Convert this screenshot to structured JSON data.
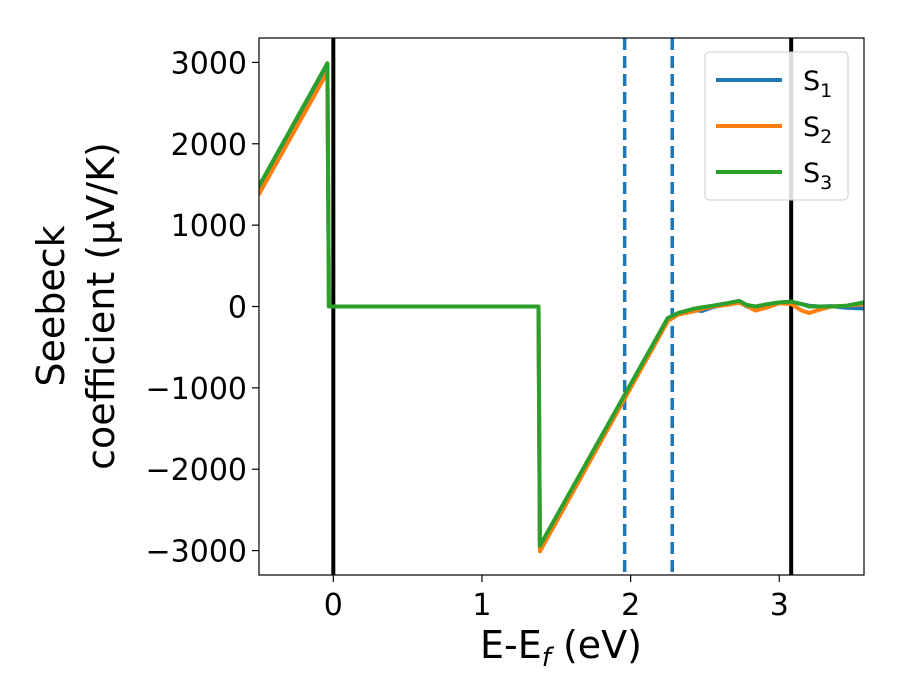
{
  "chart_data": {
    "type": "line",
    "xlabel": "E-E_f (eV)",
    "ylabel": "Seebeck coefficient (μV/K)",
    "ylabel_lines": [
      "Seebeck",
      "coefficient  (μV/K)"
    ],
    "xlim": [
      -0.5,
      3.57
    ],
    "ylim": [
      -3300,
      3300
    ],
    "x_ticks": [
      0,
      1,
      2,
      3
    ],
    "x_tick_labels": [
      "0",
      "1",
      "2",
      "3"
    ],
    "y_ticks": [
      3000,
      2000,
      1000,
      0,
      -1000,
      -2000,
      -3000
    ],
    "y_tick_labels": [
      "3000",
      "2000",
      "1000",
      "0",
      "−1000",
      "−2000",
      "−3000"
    ],
    "grid": false,
    "legend_position": "top-right",
    "vertical_lines": [
      {
        "x": 0.0,
        "style": "solid",
        "color": "#000000"
      },
      {
        "x": 1.96,
        "style": "dashed",
        "color": "#1f77b4"
      },
      {
        "x": 2.28,
        "style": "dashed",
        "color": "#1f77b4"
      },
      {
        "x": 3.08,
        "style": "solid",
        "color": "#000000"
      }
    ],
    "series": [
      {
        "name": "S_1",
        "legend_main": "S",
        "legend_sub": "1",
        "color": "#1f77b4",
        "x": [
          -0.5,
          -0.04,
          -0.03,
          1.38,
          1.39,
          2.25,
          2.32,
          2.42,
          2.48,
          2.55,
          2.65,
          2.73,
          2.78,
          2.84,
          2.92,
          3.0,
          3.08,
          3.15,
          3.2,
          3.27,
          3.35,
          3.45,
          3.57
        ],
        "y": [
          1450,
          2980,
          0,
          0,
          -2950,
          -160,
          -80,
          -40,
          -55,
          -10,
          30,
          60,
          0,
          -30,
          20,
          45,
          55,
          30,
          10,
          0,
          5,
          -15,
          -25
        ]
      },
      {
        "name": "S_2",
        "legend_main": "S",
        "legend_sub": "2",
        "color": "#ff7f0e",
        "x": [
          -0.5,
          -0.04,
          -0.03,
          1.38,
          1.39,
          2.25,
          2.32,
          2.42,
          2.48,
          2.55,
          2.65,
          2.73,
          2.78,
          2.84,
          2.92,
          3.0,
          3.08,
          3.15,
          3.2,
          3.27,
          3.35,
          3.45,
          3.57
        ],
        "y": [
          1380,
          2880,
          0,
          0,
          -3010,
          -180,
          -100,
          -60,
          -30,
          0,
          20,
          45,
          10,
          -50,
          -10,
          40,
          30,
          -50,
          -80,
          -40,
          0,
          10,
          30
        ]
      },
      {
        "name": "S_3",
        "legend_main": "S",
        "legend_sub": "3",
        "color": "#2ca02c",
        "x": [
          -0.5,
          -0.04,
          -0.03,
          1.38,
          1.39,
          2.25,
          2.32,
          2.42,
          2.48,
          2.55,
          2.65,
          2.73,
          2.78,
          2.84,
          2.92,
          3.0,
          3.08,
          3.15,
          3.2,
          3.27,
          3.35,
          3.45,
          3.57
        ],
        "y": [
          1480,
          2990,
          0,
          0,
          -2940,
          -140,
          -80,
          -30,
          -10,
          10,
          40,
          70,
          20,
          0,
          30,
          50,
          60,
          30,
          0,
          0,
          0,
          10,
          50
        ]
      }
    ]
  }
}
